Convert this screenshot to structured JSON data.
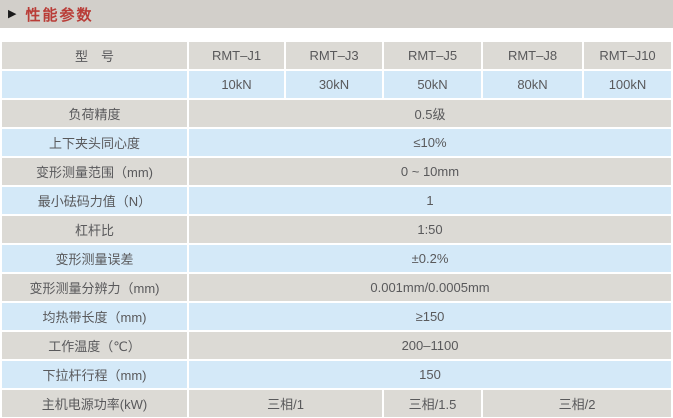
{
  "section": {
    "arrow_icon": "▶",
    "title": "性能参数"
  },
  "colors": {
    "title_bar_bg": "#d2cfca",
    "title_text": "#b93c37",
    "row_gray": "#dcdad5",
    "row_blue": "#d4e9f8",
    "cell_text": "#59595b"
  },
  "table": {
    "model_row": {
      "label": "型　号",
      "models": [
        "RMT–J1",
        "RMT–J3",
        "RMT–J5",
        "RMT–J8",
        "RMT–J10"
      ]
    },
    "capacity_row": {
      "label": "",
      "values": [
        "10kN",
        "30kN",
        "50kN",
        "80kN",
        "100kN"
      ]
    },
    "spec_rows": [
      {
        "label": "负荷精度",
        "value": "0.5级"
      },
      {
        "label": "上下夹头同心度",
        "value": "≤10%"
      },
      {
        "label": "变形测量范围（mm)",
        "value": "0 ~ 10mm"
      },
      {
        "label": "最小砝码力值（N）",
        "value": "1"
      },
      {
        "label": "杠杆比",
        "value": "1:50"
      },
      {
        "label": "变形测量误差",
        "value": "±0.2%"
      },
      {
        "label": "变形测量分辨力（mm)",
        "value": "0.001mm/0.0005mm"
      },
      {
        "label": "均热带长度（mm)",
        "value": "≥150"
      },
      {
        "label": "工作温度（℃）",
        "value": "200–1100"
      },
      {
        "label": "下拉杆行程（mm)",
        "value": "150"
      }
    ],
    "power_row": {
      "label": "主机电源功率(kW)",
      "values": [
        "三相/1",
        "三相/1.5",
        "三相/2"
      ]
    }
  }
}
